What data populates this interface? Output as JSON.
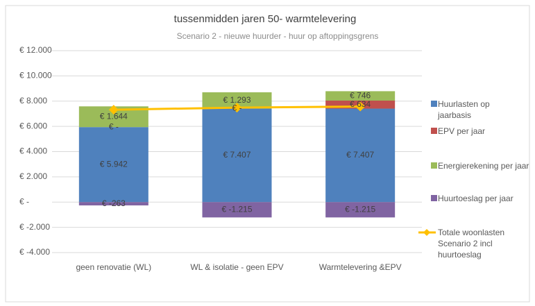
{
  "chart_data": {
    "type": "bar",
    "stacked": true,
    "title": "tussenmidden jaren 50- warmtelevering",
    "subtitle": "Scenario 2 - nieuwe huurder -  huur op aftoppingsgrens",
    "categories": [
      "geen renovatie (WL)",
      "WL & isolatie - geen EPV",
      "Warmtelevering &EPV"
    ],
    "ylim": [
      -4000,
      12000
    ],
    "yticks": [
      {
        "value": -4000,
        "label": "€ -4.000"
      },
      {
        "value": -2000,
        "label": "€ -2.000"
      },
      {
        "value": 0,
        "label": "€ -"
      },
      {
        "value": 2000,
        "label": "€ 2.000"
      },
      {
        "value": 4000,
        "label": "€ 4.000"
      },
      {
        "value": 6000,
        "label": "€ 6.000"
      },
      {
        "value": 8000,
        "label": "€ 8.000"
      },
      {
        "value": 10000,
        "label": "€ 10.000"
      },
      {
        "value": 12000,
        "label": "€ 12.000"
      }
    ],
    "grid": true,
    "legend": "right",
    "series": [
      {
        "name": "Huurlasten op jaarbasis",
        "color": "#4f81bd",
        "values": [
          5942,
          7407,
          7407
        ],
        "value_labels": [
          "€ 5.942",
          "€ 7.407",
          "€ 7.407"
        ]
      },
      {
        "name": "EPV per jaar",
        "color": "#c0504d",
        "values": [
          0,
          0,
          634
        ],
        "value_labels": [
          "€ -",
          "€ -",
          "€ 634"
        ]
      },
      {
        "name": "Energierekening per jaar",
        "color": "#9bbb59",
        "values": [
          1644,
          1293,
          746
        ],
        "value_labels": [
          "€ 1.644",
          "€ 1.293",
          "€ 746"
        ]
      },
      {
        "name": "Huurtoeslag per jaar",
        "color": "#8064a2",
        "values": [
          -263,
          -1215,
          -1215
        ],
        "value_labels": [
          "€ -263",
          "€ -1.215",
          "€ -1.215"
        ]
      },
      {
        "name": "Totale woonlasten Scenario 2 incl huurtoeslag",
        "type": "line",
        "color": "#ffc000",
        "values": [
          7323,
          7485,
          7572
        ]
      }
    ]
  }
}
